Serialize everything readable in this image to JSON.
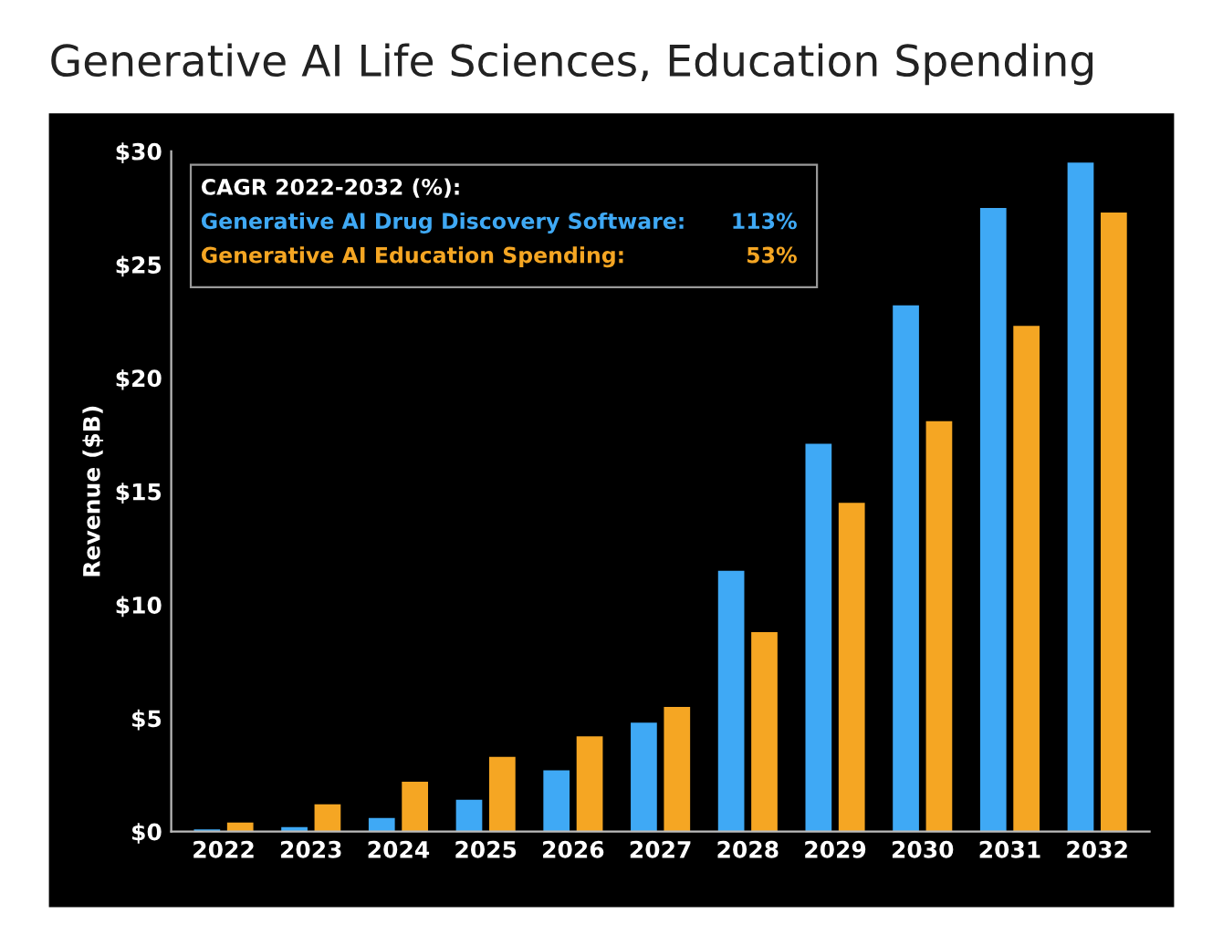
{
  "chart_data": {
    "type": "bar",
    "title": "Generative AI Life Sciences, Education Spending",
    "categories": [
      "2022",
      "2023",
      "2024",
      "2025",
      "2026",
      "2027",
      "2028",
      "2029",
      "2030",
      "2031",
      "2032"
    ],
    "series": [
      {
        "name": "Generative AI Drug Discovery Software:",
        "color": "#3fa9f5",
        "values": [
          0.1,
          0.2,
          0.6,
          1.4,
          2.7,
          4.8,
          11.5,
          17.1,
          23.2,
          27.5,
          29.5
        ]
      },
      {
        "name": "Generative AI Education Spending:",
        "color": "#f5a623",
        "values": [
          0.4,
          1.2,
          2.2,
          3.3,
          4.2,
          5.5,
          8.8,
          14.5,
          18.1,
          22.3,
          27.3
        ]
      }
    ],
    "ylabel": "Revenue ($B)",
    "legend_title": "CAGR 2022-2032 (%):",
    "legend": "top left",
    "annotations": [
      "113%",
      "53%"
    ],
    "ylim": [
      0,
      30
    ],
    "yticks": [
      {
        "value": 0,
        "label": "$0"
      },
      {
        "value": 5,
        "label": "$5"
      },
      {
        "value": 10,
        "label": "$10"
      },
      {
        "value": 15,
        "label": "$15"
      },
      {
        "value": 20,
        "label": "$20"
      },
      {
        "value": 25,
        "label": "$25"
      },
      {
        "value": 30,
        "label": "$30"
      }
    ],
    "grid": false
  }
}
